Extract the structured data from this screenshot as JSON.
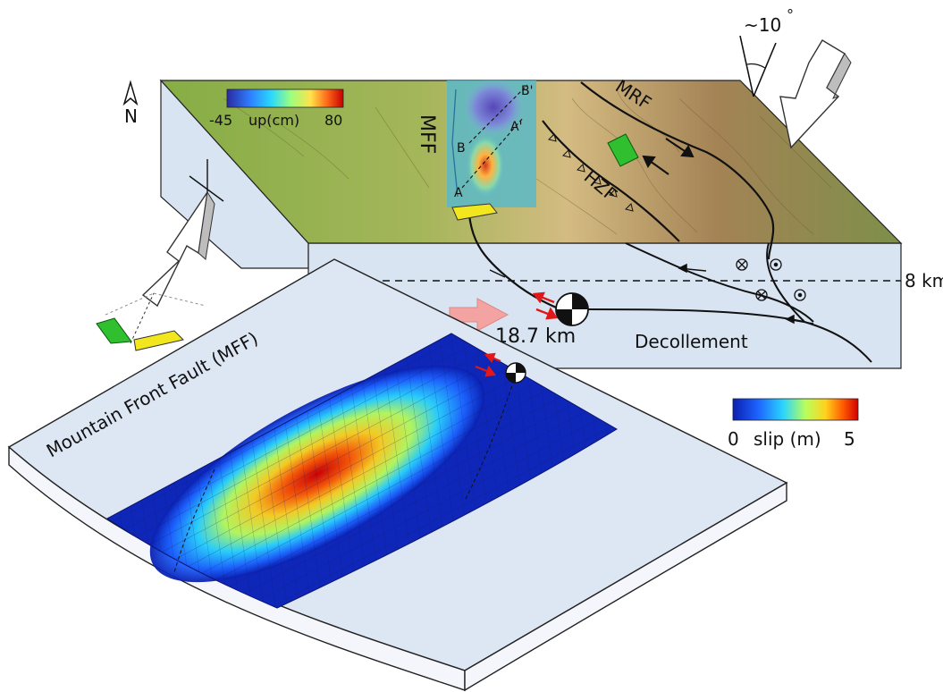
{
  "north": {
    "letter": "N"
  },
  "angle": {
    "label": "~10",
    "degree_mark": "°"
  },
  "top_colorbar": {
    "min": "-45",
    "unit": "up(cm)",
    "max": "80",
    "colors": [
      "#2a2aa0",
      "#2f7fff",
      "#29d8ff",
      "#9cff7f",
      "#ffe24a",
      "#ff6a1a",
      "#c40000"
    ]
  },
  "slip_colorbar": {
    "min": "0",
    "unit": "slip (m)",
    "max": "5",
    "colors": [
      "#0a1fb0",
      "#1d63ff",
      "#2ad4ff",
      "#b9ff5c",
      "#ffd21e",
      "#ff5a00",
      "#d10000"
    ]
  },
  "faults": {
    "mff": "MFF",
    "mrf": "MRF",
    "hzf": "HZF"
  },
  "profiles": {
    "a": "A",
    "a_prime": "A'",
    "b": "B",
    "b_prime": "B'"
  },
  "depths": {
    "shallow": "8 km",
    "hypocenter": "18.7 km"
  },
  "decollement": "Decollement",
  "fault_plane_title": "Mountain Front Fault (MFF)",
  "colors": {
    "box_side": "#d9e4f2",
    "terrain_low": "#8fb04a",
    "terrain_high": "#b69b63",
    "plane": "#dde6f3"
  }
}
